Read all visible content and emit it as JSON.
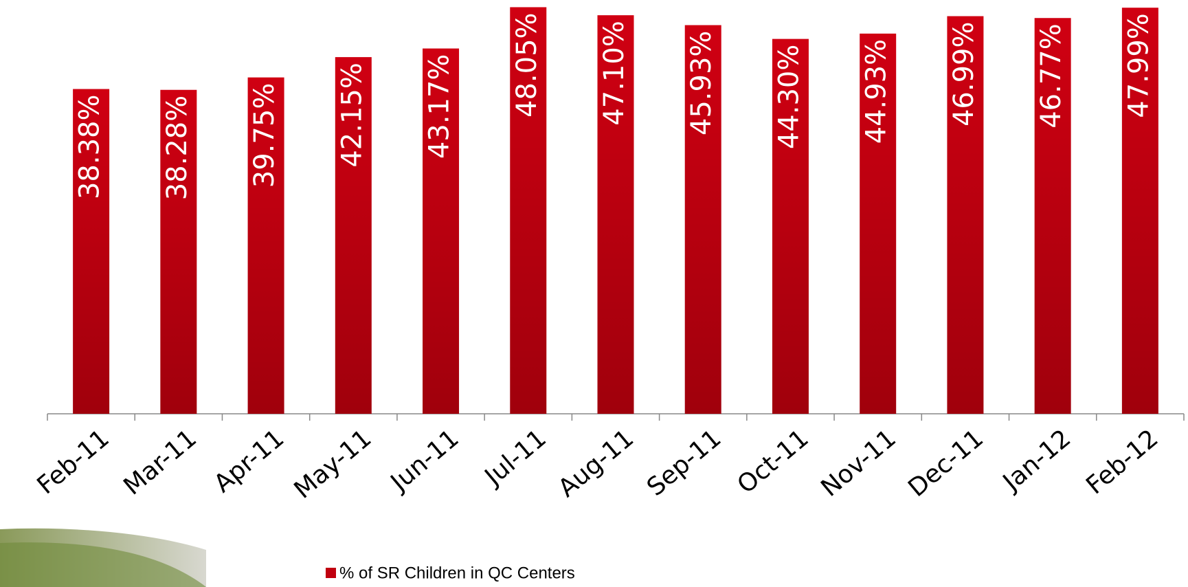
{
  "chart_data": {
    "type": "bar",
    "categories": [
      "Feb-11",
      "Mar-11",
      "Apr-11",
      "May-11",
      "Jun-11",
      "Jul-11",
      "Aug-11",
      "Sep-11",
      "Oct-11",
      "Nov-11",
      "Dec-11",
      "Jan-12",
      "Feb-12"
    ],
    "series": [
      {
        "name": "% of SR Children in QC Centers",
        "color": "#c0000f",
        "values": [
          38.38,
          38.28,
          39.75,
          42.15,
          43.17,
          48.05,
          47.1,
          45.93,
          44.3,
          44.93,
          46.99,
          46.77,
          47.99
        ],
        "value_labels": [
          "38.38%",
          "38.28%",
          "39.75%",
          "42.15%",
          "43.17%",
          "48.05%",
          "47.10%",
          "45.93%",
          "44.30%",
          "44.93%",
          "46.99%",
          "46.77%",
          "47.99%"
        ]
      }
    ],
    "ylim": [
      0,
      48.9
    ],
    "legend": "bottom"
  }
}
